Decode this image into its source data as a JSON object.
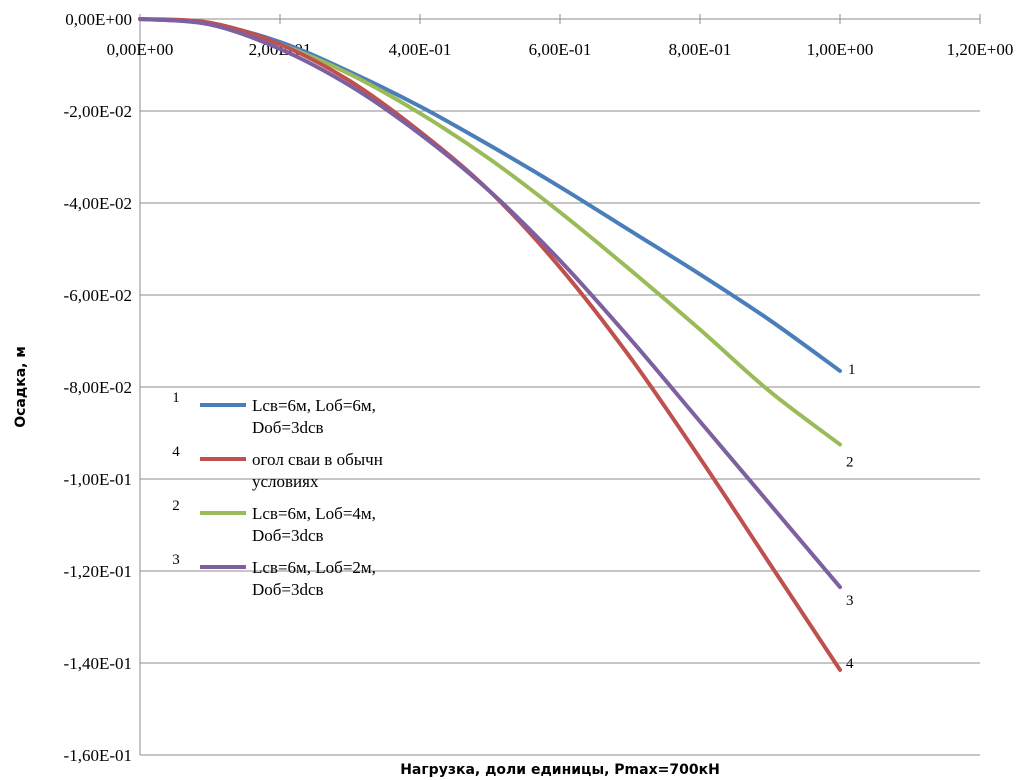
{
  "chart_data": {
    "type": "line",
    "xlabel": "Нагрузка, доли единицы, Pmax=700кН",
    "ylabel": "Осадка, м",
    "xlim": [
      0,
      1.2
    ],
    "ylim": [
      -0.16,
      0
    ],
    "x_ticks": [
      0,
      0.2,
      0.4,
      0.6,
      0.8,
      1.0,
      1.2
    ],
    "x_tick_labels": [
      "0,00E+00",
      "2,00E-01",
      "4,00E-01",
      "6,00E-01",
      "8,00E-01",
      "1,00E+00",
      "1,20E+00"
    ],
    "y_ticks": [
      0,
      -0.02,
      -0.04,
      -0.06,
      -0.08,
      -0.1,
      -0.12,
      -0.14,
      -0.16
    ],
    "y_tick_labels": [
      "0,00E+00",
      "-2,00E-02",
      "-4,00E-02",
      "-6,00E-02",
      "-8,00E-02",
      "-1,00E-01",
      "-1,20E-01",
      "-1,40E-01",
      "-1,60E-01"
    ],
    "grid": "horizontal",
    "legend_position": "center-left",
    "series": [
      {
        "number": "1",
        "name": "Lсв=6м, Lоб=6м, Dоб=3dсв",
        "color": "#4a7ebb",
        "x": [
          0,
          0.1,
          0.2,
          0.3,
          0.4,
          0.5,
          0.6,
          0.7,
          0.8,
          0.9,
          1.0
        ],
        "y": [
          0,
          -0.001,
          -0.005,
          -0.0115,
          -0.019,
          -0.0275,
          -0.0365,
          -0.046,
          -0.0555,
          -0.0655,
          -0.0765
        ]
      },
      {
        "number": "2",
        "name": "Lсв=6м, Lоб=4м, Dоб=3dсв",
        "color": "#9bbb59",
        "x": [
          0,
          0.1,
          0.2,
          0.3,
          0.4,
          0.5,
          0.6,
          0.7,
          0.8,
          0.9,
          1.0
        ],
        "y": [
          0,
          -0.001,
          -0.0055,
          -0.012,
          -0.0205,
          -0.0305,
          -0.042,
          -0.0545,
          -0.0675,
          -0.081,
          -0.0925
        ]
      },
      {
        "number": "3",
        "name": "Lсв=6м, Lоб=2м, Dоб=3dсв",
        "color": "#7d60a0",
        "x": [
          0,
          0.1,
          0.2,
          0.3,
          0.4,
          0.5,
          0.6,
          0.7,
          0.8,
          0.9,
          1.0
        ],
        "y": [
          0,
          -0.0012,
          -0.0065,
          -0.0145,
          -0.025,
          -0.0375,
          -0.0525,
          -0.0695,
          -0.0875,
          -0.1055,
          -0.1235
        ]
      },
      {
        "number": "4",
        "name": "огол сваи в обычн условиях",
        "color": "#c0504d",
        "x": [
          0,
          0.1,
          0.2,
          0.3,
          0.4,
          0.5,
          0.6,
          0.7,
          0.8,
          0.9,
          1.0
        ],
        "y": [
          0,
          -0.0008,
          -0.0055,
          -0.0135,
          -0.0245,
          -0.0375,
          -0.054,
          -0.0735,
          -0.0955,
          -0.1185,
          -0.1415
        ]
      }
    ],
    "legend_order": [
      0,
      3,
      1,
      2
    ],
    "legend_lines": [
      [
        "Lсв=6м, Lоб=6м,",
        "Dоб=3dсв"
      ],
      [
        "огол сваи в обычн",
        "условиях"
      ],
      [
        "Lсв=6м, Lоб=4м,",
        "Dоб=3dсв"
      ],
      [
        "Lсв=6м, Lоб=2м,",
        "Dоб=3dсв"
      ]
    ]
  }
}
